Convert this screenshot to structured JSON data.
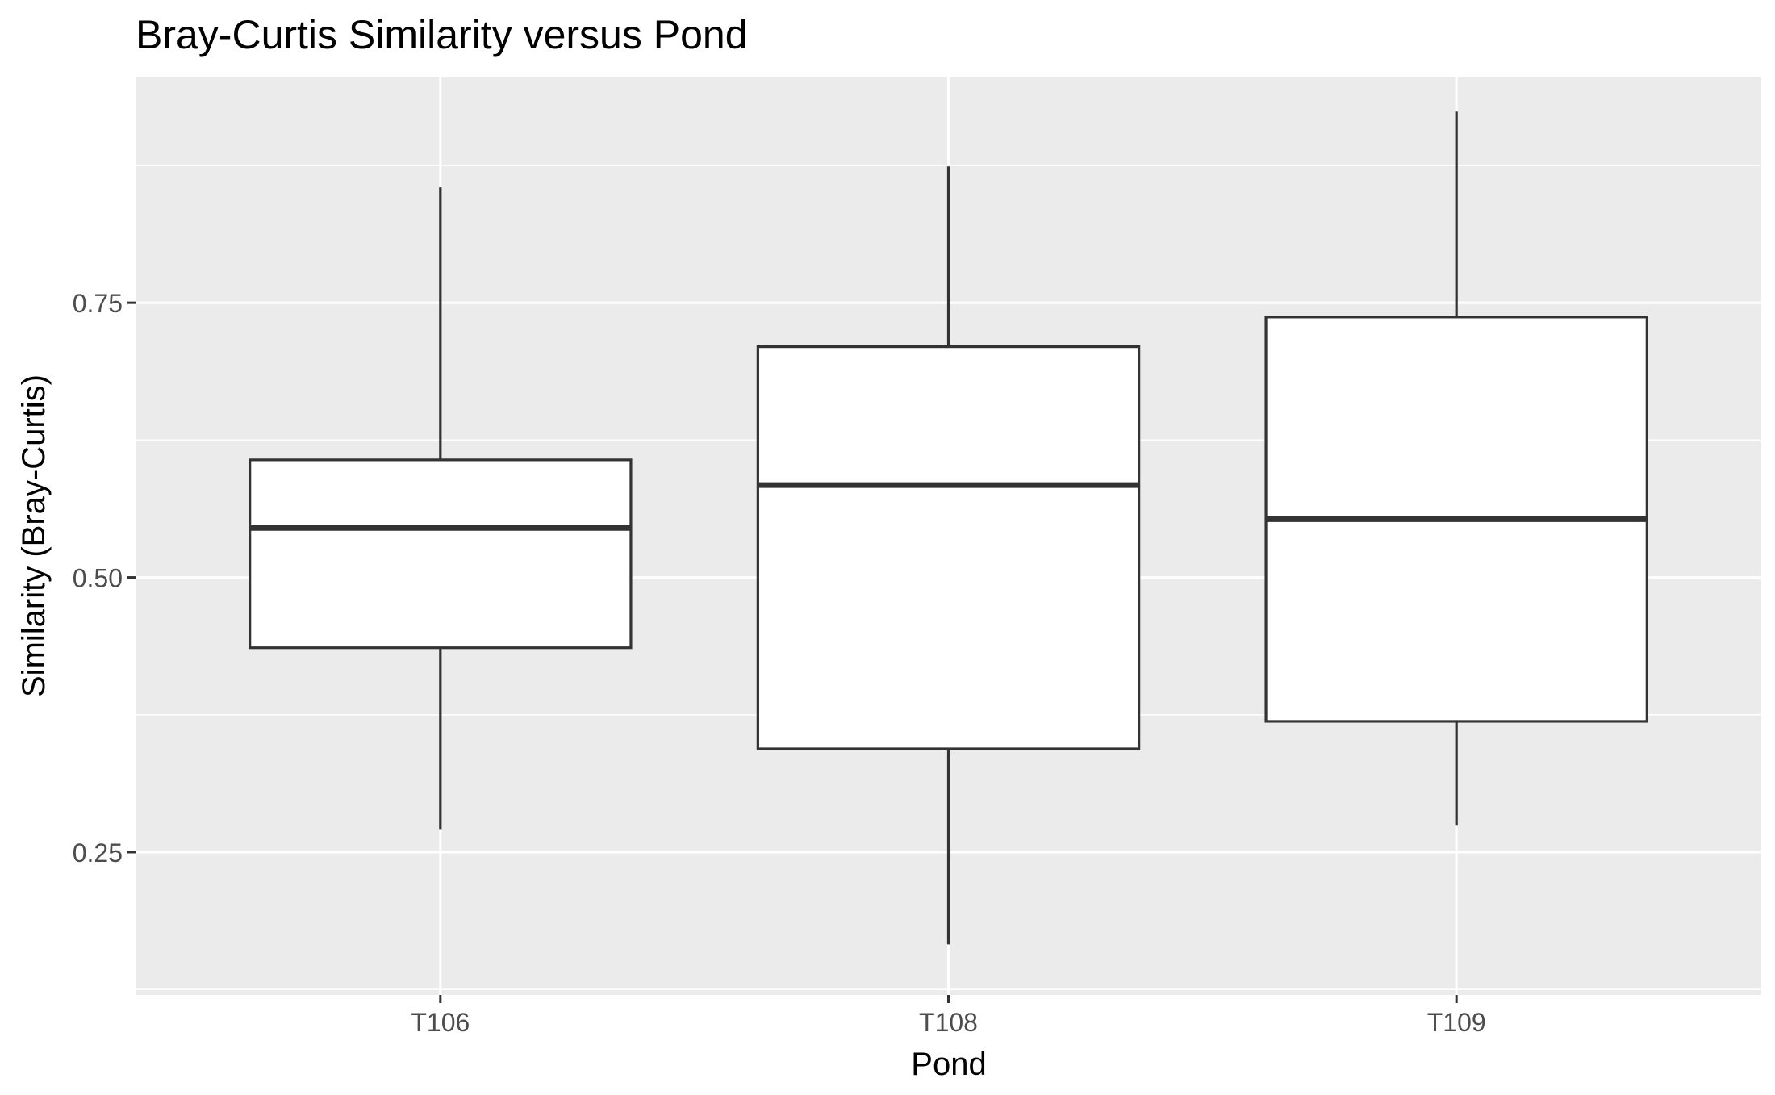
{
  "chart_data": {
    "type": "boxplot",
    "title": "Bray-Curtis Similarity versus Pond",
    "xlabel": "Pond",
    "ylabel": "Similarity (Bray-Curtis)",
    "categories": [
      "T106",
      "T108",
      "T109"
    ],
    "boxes": [
      {
        "category": "T106",
        "whisker_low": 0.271,
        "q1": 0.436,
        "median": 0.545,
        "q3": 0.607,
        "whisker_high": 0.855
      },
      {
        "category": "T108",
        "whisker_low": 0.166,
        "q1": 0.344,
        "median": 0.584,
        "q3": 0.71,
        "whisker_high": 0.874
      },
      {
        "category": "T109",
        "whisker_low": 0.274,
        "q1": 0.369,
        "median": 0.553,
        "q3": 0.737,
        "whisker_high": 0.924
      }
    ],
    "yticks": [
      0.25,
      0.5,
      0.75
    ],
    "ytick_labels": [
      "0.25",
      "0.50",
      "0.75"
    ],
    "ylim": [
      0.12,
      0.955
    ],
    "grid": true,
    "colors": {
      "panel": "#EBEBEB",
      "grid": "#FFFFFF",
      "box_fill": "#FFFFFF",
      "box_stroke": "#333333",
      "tick_text": "#4D4D4D",
      "axis_text": "#000000"
    }
  }
}
